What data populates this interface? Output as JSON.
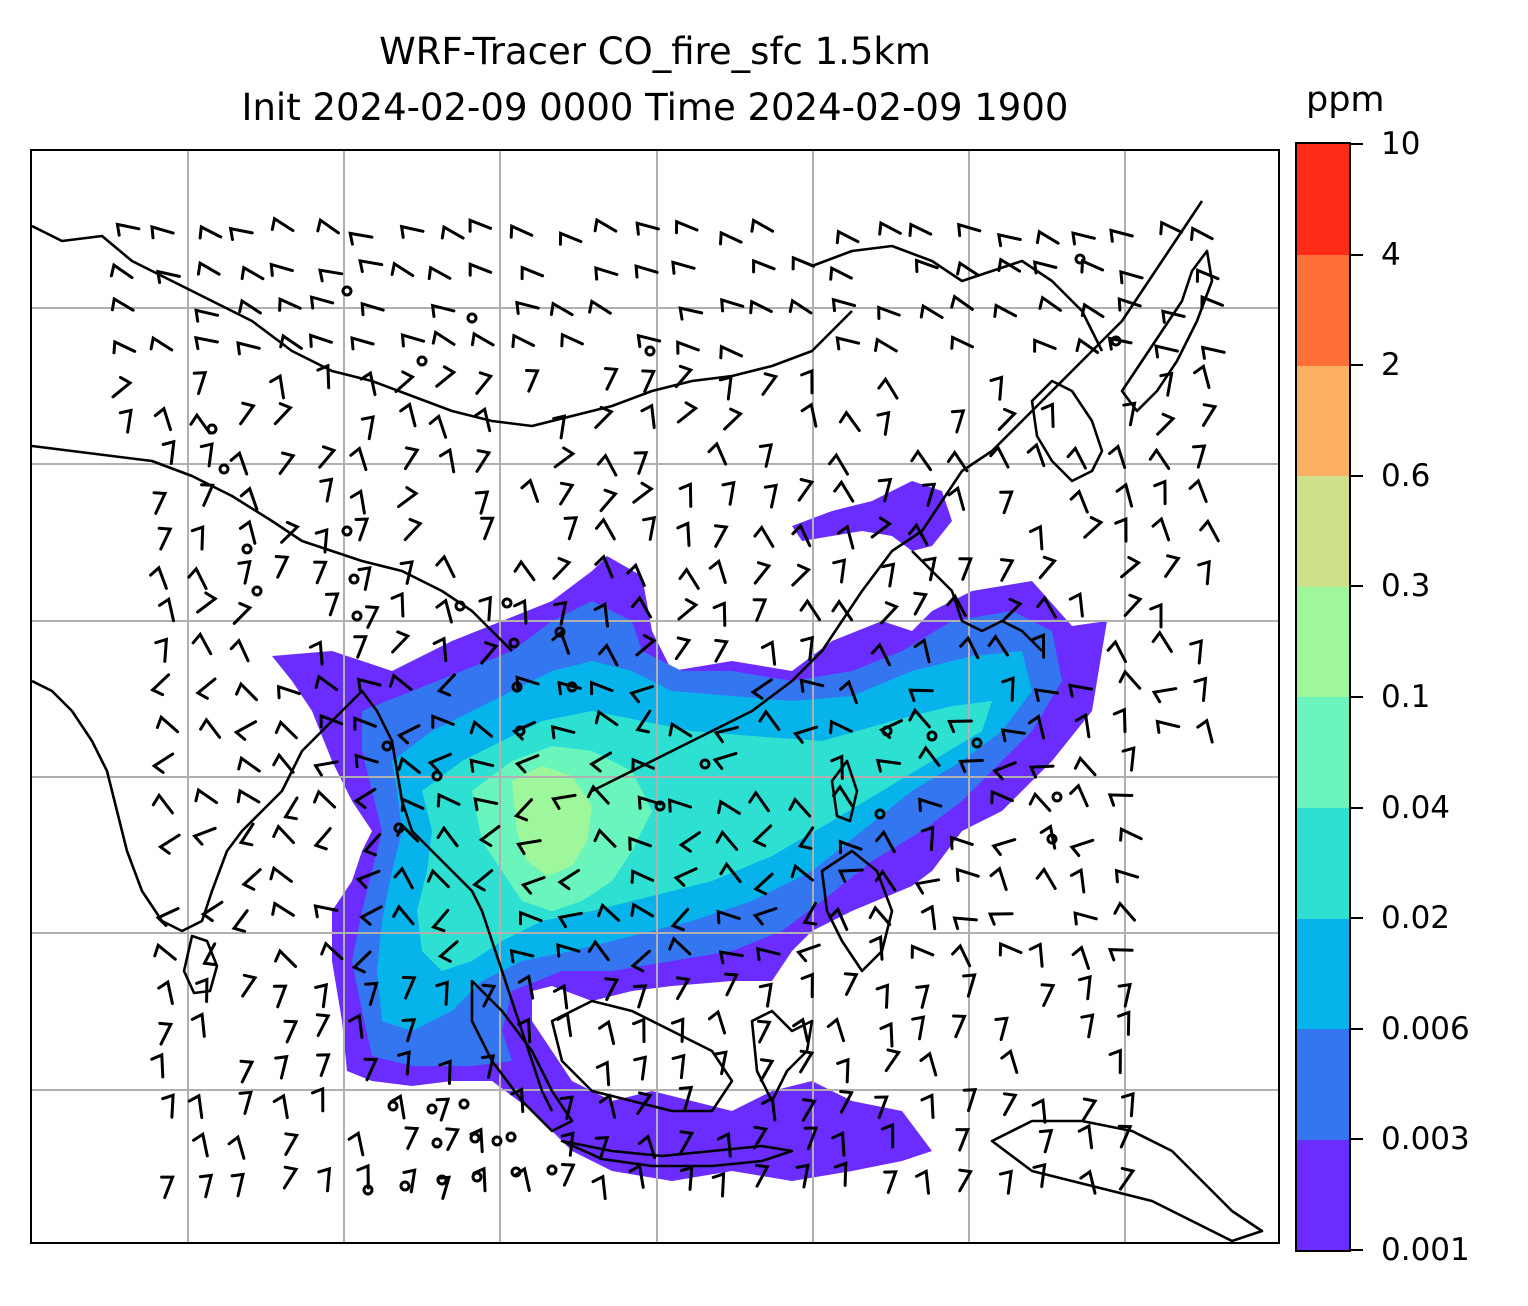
{
  "title": {
    "line1": "WRF-Tracer CO_fire_sfc 1.5km",
    "line2": "Init 2024-02-09 0000 Time 2024-02-09 1900"
  },
  "colorbar": {
    "unit": "ppm",
    "levels": [
      "0.001",
      "0.003",
      "0.006",
      "0.02",
      "0.04",
      "0.1",
      "0.3",
      "0.6",
      "2",
      "4",
      "10"
    ],
    "colors": [
      "#6a2cff",
      "#3475f0",
      "#06b3ea",
      "#2ee0d2",
      "#6af5bc",
      "#9ef79a",
      "#cfe08a",
      "#fdb061",
      "#fe7038",
      "#fe2b16"
    ]
  },
  "map": {
    "gridlines": true,
    "coastline_color": "#000000",
    "plume_colors": {
      "l1": "#6a2cff",
      "l2": "#3475f0",
      "l3": "#06b3ea",
      "l4": "#2ee0d2",
      "l5": "#6af5bc",
      "l6": "#9ef79a"
    }
  }
}
